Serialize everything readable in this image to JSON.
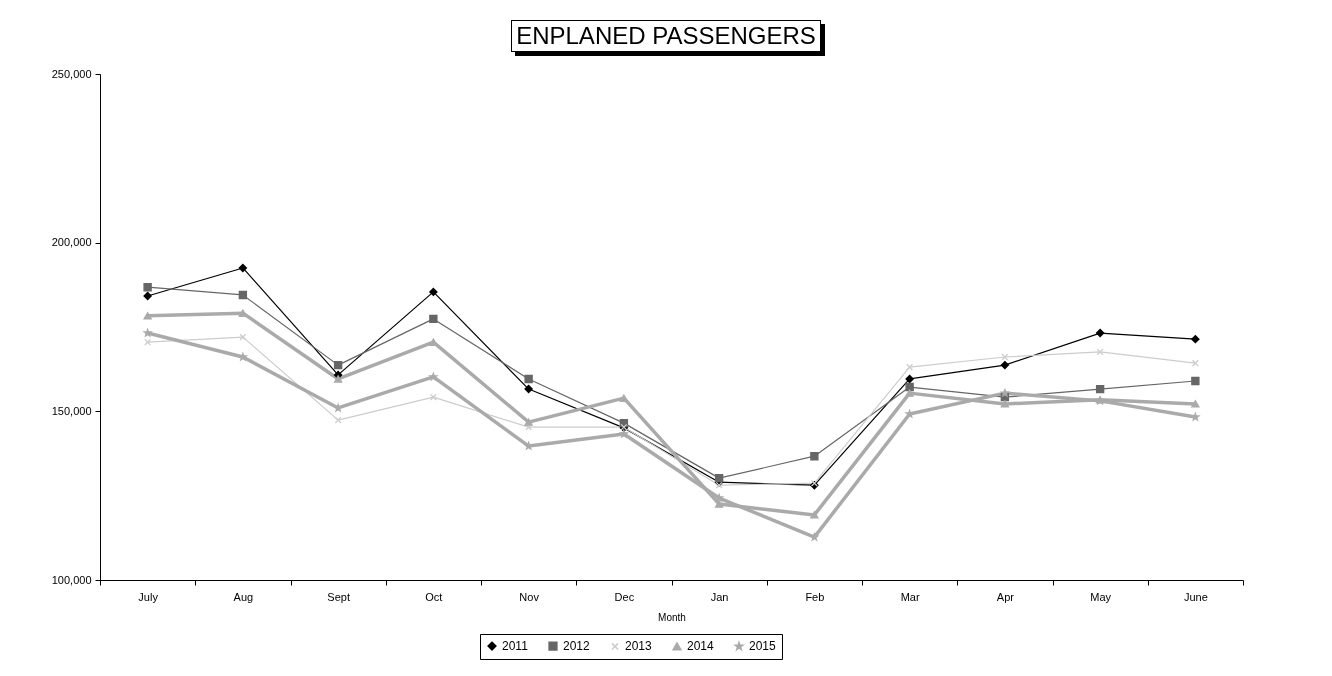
{
  "chart_data": {
    "type": "line",
    "title": "ENPLANED PASSENGERS",
    "xlabel": "Month",
    "categories": [
      "July",
      "Aug",
      "Sept",
      "Oct",
      "Nov",
      "Dec",
      "Jan",
      "Feb",
      "Mar",
      "Apr",
      "May",
      "June"
    ],
    "series": [
      {
        "name": "2011",
        "color": "#000000",
        "marker": "diamond",
        "values": [
          184200,
          192500,
          160800,
          185400,
          156600,
          145100,
          129000,
          128100,
          159600,
          163700,
          173200,
          171400
        ]
      },
      {
        "name": "2012",
        "color": "#666666",
        "marker": "square",
        "values": [
          186800,
          184500,
          163700,
          177400,
          159600,
          146500,
          130200,
          136700,
          157200,
          154200,
          156600,
          159000
        ]
      },
      {
        "name": "2013",
        "color": "#cccccc",
        "marker": "cross",
        "values": [
          170500,
          172000,
          147400,
          154200,
          145300,
          145300,
          128100,
          128700,
          163100,
          166100,
          167600,
          164300
        ]
      },
      {
        "name": "2014",
        "color": "#aaaaaa",
        "marker": "triangle",
        "values": [
          178300,
          179100,
          159600,
          170500,
          146800,
          153900,
          122500,
          119300,
          155400,
          152200,
          153400,
          152200
        ]
      },
      {
        "name": "2015",
        "color": "#aaaaaa",
        "marker": "star",
        "values": [
          173200,
          166100,
          151000,
          160200,
          139700,
          143300,
          124300,
          112700,
          149200,
          155400,
          153100,
          148300
        ]
      }
    ],
    "ylim": [
      100000,
      250000
    ],
    "yticks": [
      {
        "value": 100000,
        "label": "100,000"
      },
      {
        "value": 150000,
        "label": "150,000"
      },
      {
        "value": 200000,
        "label": "200,000"
      },
      {
        "value": 250000,
        "label": "250,000"
      }
    ],
    "grid": false,
    "legend": "bottom"
  }
}
